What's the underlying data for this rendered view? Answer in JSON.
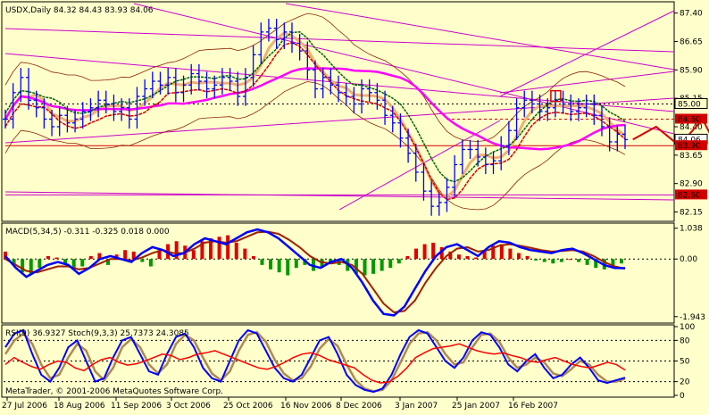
{
  "window": {
    "price_title": "USDX,Daily  84.32 84.43 83.93 84.06",
    "macd_title": "MACD(5,34,5) -0.311 -0.325 0.018 0.000",
    "osc_title": "RSI(9) 36.9327  Stoch(9,3,3) 25.7373 24.3085",
    "copyright": "MetaTrader, © 2001-2006 MetaQuotes Software Corp."
  },
  "colors": {
    "background": "#ffffcc",
    "bars": "#0000ff",
    "price_line_red": "#d40000",
    "ma_magenta": "#ff00ff",
    "ma_green": "#006600",
    "ma_orange": "#f0b070",
    "envelope": "#8b2500",
    "trend_purple": "#cc00cc",
    "macd_pos": "#e00000",
    "macd_neg": "#009900",
    "stoch_main": "#0000ff",
    "stoch_signal": "#b08a50",
    "rsi": "#ff0000"
  },
  "chart_data": [
    {
      "type": "bar",
      "pane": "price",
      "x_ticks": [
        "27 Jul 2006",
        "18 Aug 2006",
        "11 Sep 2006",
        "3 Oct 2006",
        "25 Oct 2006",
        "16 Nov 2006",
        "8 Dec 2006",
        "3 Jan 2007",
        "25 Jan 2007",
        "16 Feb 2007"
      ],
      "y_ticks": [
        87.4,
        86.65,
        85.9,
        85.15,
        84.4,
        83.65,
        82.9,
        82.15
      ],
      "ylim": [
        81.95,
        87.65
      ],
      "level_labels": [
        {
          "value": 85.0,
          "label": "85.00",
          "style": "boxed"
        },
        {
          "value": 84.6,
          "label": "84.60",
          "style": "red"
        },
        {
          "value": 84.06,
          "label": "84.06",
          "style": "plain"
        },
        {
          "value": 83.9,
          "label": "83.90",
          "style": "red"
        },
        {
          "value": 82.6,
          "label": "82.60",
          "style": "red"
        }
      ],
      "close_series": [
        84.6,
        85.3,
        85.7,
        85.1,
        84.9,
        84.6,
        84.4,
        84.7,
        84.5,
        84.6,
        84.8,
        84.9,
        85.1,
        85.0,
        84.8,
        84.9,
        84.6,
        85.2,
        85.4,
        85.6,
        85.5,
        85.7,
        85.3,
        85.5,
        85.8,
        85.6,
        85.4,
        85.5,
        85.7,
        85.6,
        85.2,
        85.7,
        86.3,
        86.9,
        87.0,
        86.7,
        86.9,
        86.6,
        86.4,
        85.9,
        85.4,
        85.7,
        85.5,
        85.3,
        85.2,
        85.0,
        85.4,
        85.3,
        85.1,
        84.7,
        84.5,
        84.1,
        83.7,
        83.2,
        82.7,
        82.3,
        82.4,
        82.8,
        83.4,
        83.8,
        83.8,
        83.6,
        83.4,
        83.5,
        83.9,
        84.3,
        84.9,
        85.1,
        85.0,
        84.8,
        84.9,
        85.1,
        85.0,
        84.8,
        84.9,
        85.0,
        84.7,
        84.4,
        84.0,
        84.2,
        84.06
      ],
      "projection": [
        [
          81,
          84.06
        ],
        [
          84,
          84.4
        ],
        [
          87,
          83.9
        ],
        [
          90,
          84.6
        ],
        [
          95,
          82.6
        ]
      ]
    },
    {
      "type": "bar",
      "pane": "macd",
      "title": "MACD(5,34,5) -0.311 -0.325 0.018 0.000",
      "y_ticks": [
        1.038,
        0.0,
        -1.943
      ],
      "ylim": [
        -2.1,
        1.15
      ],
      "histogram": [
        0.25,
        -0.2,
        -0.45,
        -0.5,
        -0.3,
        0.1,
        0.05,
        -0.15,
        -0.3,
        -0.25,
        0.1,
        0.2,
        -0.2,
        0.15,
        0.3,
        0.25,
        -0.1,
        -0.25,
        0.3,
        0.5,
        0.6,
        0.45,
        0.3,
        0.6,
        0.7,
        0.75,
        0.8,
        0.55,
        0.35,
        0.1,
        -0.2,
        -0.35,
        -0.45,
        -0.55,
        -0.3,
        -0.2,
        -0.4,
        -0.3,
        -0.1,
        -0.2,
        -0.4,
        -0.5,
        -0.55,
        -0.5,
        -0.4,
        -0.3,
        -0.15,
        0.1,
        0.35,
        0.5,
        0.55,
        0.4,
        0.25,
        0.15,
        0.1,
        0.05,
        0.3,
        0.45,
        0.5,
        0.35,
        0.2,
        0.1,
        -0.05,
        -0.1,
        -0.15,
        -0.1,
        0.0,
        -0.1,
        -0.2,
        -0.3,
        -0.35,
        -0.25,
        -0.15
      ],
      "macd_line": [
        0.1,
        -0.3,
        -0.6,
        -0.4,
        -0.2,
        -0.1,
        -0.2,
        -0.5,
        -0.3,
        0.0,
        0.1,
        0.0,
        -0.1,
        0.2,
        0.4,
        0.3,
        0.1,
        0.2,
        0.5,
        0.7,
        0.6,
        0.5,
        0.7,
        0.9,
        1.0,
        0.9,
        0.7,
        0.4,
        0.1,
        -0.2,
        -0.3,
        -0.1,
        0.0,
        -0.3,
        -0.8,
        -1.4,
        -1.85,
        -1.9,
        -1.6,
        -1.0,
        -0.4,
        0.1,
        0.4,
        0.5,
        0.3,
        0.1,
        0.4,
        0.6,
        0.55,
        0.4,
        0.3,
        0.25,
        0.2,
        0.3,
        0.35,
        0.2,
        0.0,
        -0.2,
        -0.3,
        -0.31
      ],
      "signal_line": [
        0.0,
        -0.2,
        -0.4,
        -0.45,
        -0.35,
        -0.25,
        -0.25,
        -0.35,
        -0.3,
        -0.15,
        0.0,
        0.0,
        -0.05,
        0.05,
        0.2,
        0.3,
        0.2,
        0.2,
        0.35,
        0.55,
        0.6,
        0.55,
        0.6,
        0.75,
        0.9,
        0.92,
        0.85,
        0.65,
        0.4,
        0.1,
        -0.1,
        -0.15,
        -0.1,
        -0.2,
        -0.5,
        -1.0,
        -1.5,
        -1.8,
        -1.75,
        -1.4,
        -0.8,
        -0.3,
        0.1,
        0.35,
        0.4,
        0.25,
        0.3,
        0.45,
        0.5,
        0.45,
        0.38,
        0.3,
        0.25,
        0.27,
        0.3,
        0.25,
        0.1,
        -0.1,
        -0.25,
        -0.325
      ]
    },
    {
      "type": "line",
      "pane": "oscillators",
      "title": "RSI(9) 36.9327  Stoch(9,3,3) 25.7373 24.3085",
      "y_ticks": [
        100,
        80,
        50,
        20,
        0
      ],
      "ylim": [
        0,
        100
      ],
      "rsi": [
        45,
        55,
        48,
        42,
        38,
        45,
        50,
        48,
        40,
        36,
        45,
        52,
        55,
        48,
        44,
        46,
        50,
        55,
        60,
        58,
        52,
        55,
        60,
        62,
        65,
        60,
        55,
        50,
        45,
        40,
        38,
        42,
        48,
        55,
        60,
        62,
        58,
        52,
        48,
        44,
        40,
        30,
        22,
        18,
        20,
        28,
        40,
        55,
        62,
        68,
        70,
        72,
        75,
        70,
        65,
        62,
        60,
        62,
        58,
        55,
        50,
        48,
        52,
        55,
        50,
        45,
        42,
        40,
        44,
        48,
        45,
        36.9
      ],
      "stoch_main": [
        70,
        90,
        95,
        60,
        30,
        20,
        40,
        70,
        80,
        50,
        20,
        25,
        55,
        80,
        85,
        60,
        35,
        30,
        60,
        85,
        90,
        70,
        40,
        25,
        20,
        50,
        80,
        95,
        90,
        65,
        40,
        25,
        20,
        30,
        55,
        80,
        85,
        60,
        30,
        15,
        8,
        5,
        10,
        30,
        60,
        85,
        95,
        90,
        70,
        50,
        40,
        55,
        80,
        92,
        88,
        70,
        45,
        35,
        50,
        60,
        40,
        25,
        30,
        45,
        55,
        40,
        22,
        18,
        22,
        25.7
      ],
      "stoch_signal": [
        60,
        80,
        90,
        75,
        45,
        25,
        30,
        55,
        75,
        65,
        35,
        22,
        40,
        70,
        82,
        70,
        45,
        32,
        45,
        75,
        88,
        80,
        55,
        32,
        22,
        35,
        65,
        88,
        92,
        78,
        52,
        32,
        22,
        25,
        42,
        68,
        82,
        72,
        45,
        22,
        10,
        6,
        8,
        22,
        48,
        75,
        90,
        92,
        80,
        60,
        45,
        48,
        70,
        88,
        90,
        78,
        55,
        40,
        45,
        55,
        48,
        32,
        28,
        38,
        50,
        45,
        30,
        20,
        20,
        24.3
      ]
    }
  ]
}
